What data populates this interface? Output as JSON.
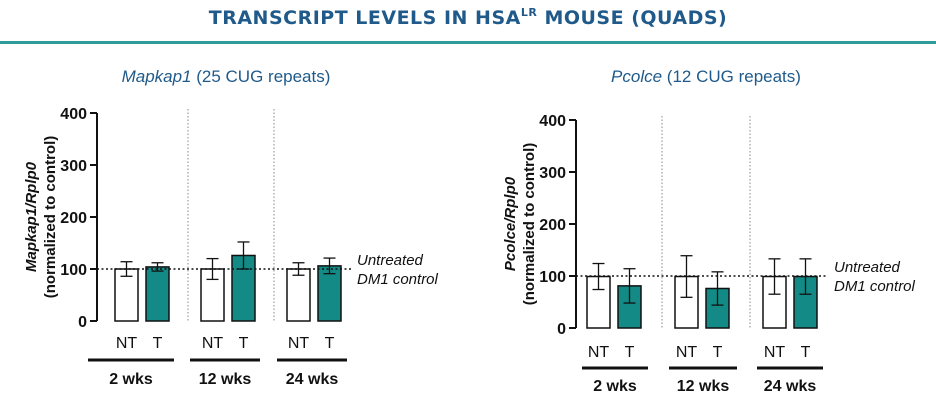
{
  "header": {
    "title_main": "TRANSCRIPT LEVELS IN HSA",
    "title_sup": "LR",
    "title_suffix": " MOUSE (QUADS)"
  },
  "colors": {
    "title": "#1f5a8a",
    "rule": "#2f9c9a",
    "treated_bar": "#138a86",
    "untreated_bar": "#ffffff",
    "axis": "#111111"
  },
  "reference_label": [
    "Untreated",
    "DM1 control"
  ],
  "chart_data": [
    {
      "type": "bar",
      "title_italic": "Mapkap1",
      "title_rest": " (25 CUG repeats)",
      "ylabel_italic": "Mapkap1/Rplp0",
      "ylabel_sub": "(normalized to control)",
      "ylim": [
        0,
        400
      ],
      "yticks": [
        0,
        100,
        200,
        300,
        400
      ],
      "reference_value": 100,
      "groups": [
        {
          "name": "2 wks",
          "bars": [
            {
              "label": "NT",
              "value": 100,
              "err": 14
            },
            {
              "label": "T",
              "value": 104,
              "err": 8
            }
          ]
        },
        {
          "name": "12 wks",
          "bars": [
            {
              "label": "NT",
              "value": 100,
              "err": 20
            },
            {
              "label": "T",
              "value": 126,
              "err": 26
            }
          ]
        },
        {
          "name": "24 wks",
          "bars": [
            {
              "label": "NT",
              "value": 100,
              "err": 12
            },
            {
              "label": "T",
              "value": 106,
              "err": 15
            }
          ]
        }
      ]
    },
    {
      "type": "bar",
      "title_italic": "Pcolce",
      "title_rest": " (12 CUG repeats)",
      "ylabel_italic": "Pcolce/Rplp0",
      "ylabel_sub": "(normalized to control)",
      "ylim": [
        0,
        400
      ],
      "yticks": [
        0,
        100,
        200,
        300,
        400
      ],
      "reference_value": 100,
      "groups": [
        {
          "name": "2 wks",
          "bars": [
            {
              "label": "NT",
              "value": 99,
              "err": 25
            },
            {
              "label": "T",
              "value": 81,
              "err": 33
            }
          ]
        },
        {
          "name": "12 wks",
          "bars": [
            {
              "label": "NT",
              "value": 99,
              "err": 40
            },
            {
              "label": "T",
              "value": 76,
              "err": 32
            }
          ]
        },
        {
          "name": "24 wks",
          "bars": [
            {
              "label": "NT",
              "value": 99,
              "err": 34
            },
            {
              "label": "T",
              "value": 99,
              "err": 34
            }
          ]
        }
      ]
    }
  ]
}
